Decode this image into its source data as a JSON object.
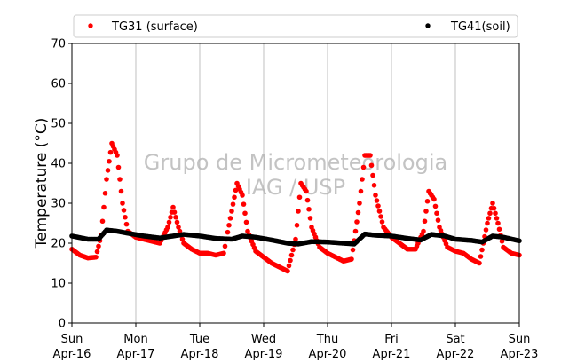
{
  "chart_data": {
    "type": "scatter",
    "ylabel": "Temperature (°C)",
    "ylim": [
      0,
      70
    ],
    "yticks": [
      0,
      10,
      20,
      30,
      40,
      50,
      60,
      70
    ],
    "xlim": [
      "2023-04-16 00:00",
      "2023-04-23 00:00"
    ],
    "xticks": [
      {
        "day": "Sun",
        "date": "Apr-16"
      },
      {
        "day": "Mon",
        "date": "Apr-17"
      },
      {
        "day": "Tue",
        "date": "Apr-18"
      },
      {
        "day": "Wed",
        "date": "Apr-19"
      },
      {
        "day": "Thu",
        "date": "Apr-20"
      },
      {
        "day": "Fri",
        "date": "Apr-21"
      },
      {
        "day": "Sat",
        "date": "Apr-22"
      },
      {
        "day": "Sun",
        "date": "Apr-23"
      }
    ],
    "grid": "vertical",
    "legend": "top",
    "watermark": [
      "Grupo de Micrometeorologia",
      "IAG / USP"
    ],
    "series": [
      {
        "name": "TG31 (surface)",
        "color": "#ff0000",
        "x": [
          "2023-04-16 00:00",
          "2023-04-16 03:00",
          "2023-04-16 06:00",
          "2023-04-16 09:00",
          "2023-04-16 11:00",
          "2023-04-16 13:00",
          "2023-04-16 15:00",
          "2023-04-16 17:00",
          "2023-04-16 19:00",
          "2023-04-16 21:00",
          "2023-04-17 00:00",
          "2023-04-17 03:00",
          "2023-04-17 06:00",
          "2023-04-17 09:00",
          "2023-04-17 12:00",
          "2023-04-17 14:00",
          "2023-04-17 16:00",
          "2023-04-17 18:00",
          "2023-04-17 21:00",
          "2023-04-18 00:00",
          "2023-04-18 03:00",
          "2023-04-18 06:00",
          "2023-04-18 09:00",
          "2023-04-18 12:00",
          "2023-04-18 14:00",
          "2023-04-18 16:00",
          "2023-04-18 18:00",
          "2023-04-18 21:00",
          "2023-04-19 00:00",
          "2023-04-19 03:00",
          "2023-04-19 06:00",
          "2023-04-19 09:00",
          "2023-04-19 12:00",
          "2023-04-19 14:00",
          "2023-04-19 16:00",
          "2023-04-19 18:00",
          "2023-04-19 21:00",
          "2023-04-20 00:00",
          "2023-04-20 03:00",
          "2023-04-20 06:00",
          "2023-04-20 09:00",
          "2023-04-20 12:00",
          "2023-04-20 14:00",
          "2023-04-20 16:00",
          "2023-04-20 18:00",
          "2023-04-20 21:00",
          "2023-04-21 00:00",
          "2023-04-21 03:00",
          "2023-04-21 06:00",
          "2023-04-21 09:00",
          "2023-04-21 12:00",
          "2023-04-21 14:00",
          "2023-04-21 16:00",
          "2023-04-21 18:00",
          "2023-04-21 21:00",
          "2023-04-22 00:00",
          "2023-04-22 03:00",
          "2023-04-22 06:00",
          "2023-04-22 09:00",
          "2023-04-22 12:00",
          "2023-04-22 14:00",
          "2023-04-22 16:00",
          "2023-04-22 18:00",
          "2023-04-22 21:00",
          "2023-04-23 00:00"
        ],
        "y": [
          18.5,
          17,
          16.3,
          16.5,
          22,
          36,
          45,
          42,
          30,
          23,
          21.5,
          21,
          20.5,
          20,
          24,
          29,
          24,
          20,
          18.5,
          17.5,
          17.5,
          17,
          17.5,
          28,
          35,
          32,
          23,
          18,
          16.5,
          15,
          14,
          13,
          21,
          35,
          33,
          24,
          19,
          17.5,
          16.5,
          15.5,
          16,
          30,
          42,
          42,
          32,
          24,
          21.5,
          20,
          18.5,
          18.5,
          23,
          33,
          31,
          24,
          19,
          18,
          17.5,
          16,
          15,
          25,
          30,
          25,
          19,
          17.5,
          17
        ]
      },
      {
        "name": "TG41(soil)",
        "color": "#000000",
        "x": [
          "2023-04-16 00:00",
          "2023-04-16 06:00",
          "2023-04-16 10:00",
          "2023-04-16 13:00",
          "2023-04-16 17:00",
          "2023-04-16 21:00",
          "2023-04-17 03:00",
          "2023-04-17 09:00",
          "2023-04-17 14:00",
          "2023-04-17 18:00",
          "2023-04-18 00:00",
          "2023-04-18 06:00",
          "2023-04-18 12:00",
          "2023-04-18 16:00",
          "2023-04-18 21:00",
          "2023-04-19 03:00",
          "2023-04-19 09:00",
          "2023-04-19 13:00",
          "2023-04-19 18:00",
          "2023-04-20 00:00",
          "2023-04-20 06:00",
          "2023-04-20 10:00",
          "2023-04-20 14:00",
          "2023-04-20 18:00",
          "2023-04-21 00:00",
          "2023-04-21 06:00",
          "2023-04-21 11:00",
          "2023-04-21 15:00",
          "2023-04-21 20:00",
          "2023-04-22 00:00",
          "2023-04-22 06:00",
          "2023-04-22 10:00",
          "2023-04-22 14:00",
          "2023-04-22 18:00",
          "2023-04-23 00:00"
        ],
        "y": [
          21.8,
          21,
          21,
          23.3,
          23,
          22.5,
          21.8,
          21.3,
          21.8,
          22.2,
          21.8,
          21.2,
          21,
          21.8,
          21.5,
          20.8,
          20,
          19.8,
          20.4,
          20.3,
          20,
          19.8,
          22.3,
          22,
          21.8,
          21.2,
          20.8,
          22.2,
          21.8,
          21,
          20.7,
          20.3,
          21.8,
          21.5,
          20.6
        ]
      }
    ]
  }
}
